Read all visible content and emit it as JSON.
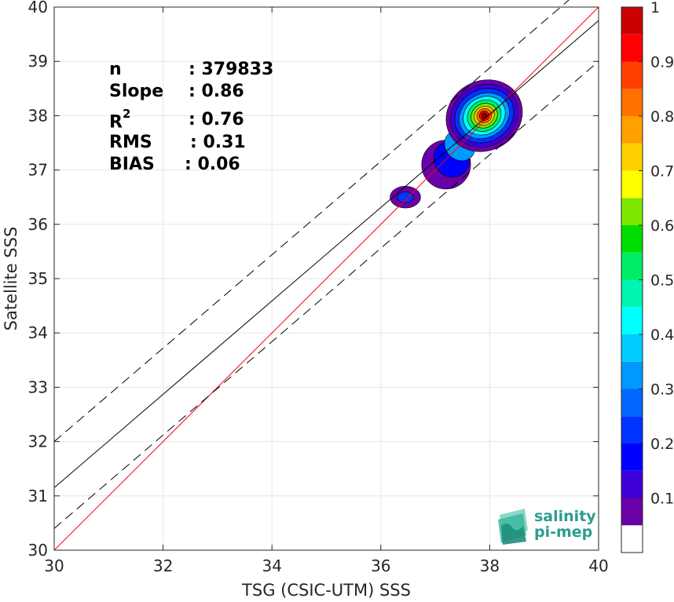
{
  "chart_data": {
    "type": "heatmap",
    "subtype": "density-contour scatter comparison",
    "xlabel": "TSG (CSIC-UTM) SSS",
    "ylabel": "Satellite SSS",
    "xlim": [
      30,
      40
    ],
    "ylim": [
      30,
      40
    ],
    "xticks": [
      30,
      32,
      34,
      36,
      38,
      40
    ],
    "yticks": [
      30,
      31,
      32,
      33,
      34,
      35,
      36,
      37,
      38,
      39,
      40
    ],
    "grid": true,
    "colorbar": {
      "min": 0,
      "max": 1,
      "ticks": [
        0.1,
        0.2,
        0.3,
        0.4,
        0.5,
        0.6,
        0.7,
        0.8,
        0.9,
        1
      ],
      "colors": [
        "#ffffff",
        "#6a00a8",
        "#3d00d6",
        "#0000ff",
        "#0033ff",
        "#0066ff",
        "#0099ff",
        "#00ccff",
        "#00ffff",
        "#00f5b0",
        "#00ee66",
        "#00dd00",
        "#7fe600",
        "#ffff00",
        "#ffd000",
        "#ffa000",
        "#ff7000",
        "#ff4000",
        "#ff0000",
        "#cc0000",
        "#8b0000"
      ]
    },
    "stats": {
      "n_label": "n",
      "n_value": ": 379833",
      "slope_label": "Slope",
      "slope_value": ": 0.86",
      "r2_label": "R",
      "r2_sup": "2",
      "r2_value": ": 0.76",
      "rms_label": "RMS",
      "rms_value": ": 0.31",
      "bias_label": "BIAS",
      "bias_value": ": 0.06"
    },
    "lines": [
      {
        "name": "identity",
        "style": "solid",
        "color": "#ff0000",
        "points": [
          [
            30,
            30
          ],
          [
            40,
            40
          ]
        ]
      },
      {
        "name": "regression",
        "style": "solid",
        "color": "#000000",
        "points": [
          [
            30,
            31.15
          ],
          [
            40,
            39.75
          ]
        ]
      },
      {
        "name": "upper-bound",
        "style": "dashed",
        "color": "#000000",
        "points": [
          [
            30,
            32.0
          ],
          [
            40,
            40.6
          ]
        ]
      },
      {
        "name": "lower-bound",
        "style": "dashed",
        "color": "#000000",
        "points": [
          [
            30,
            30.4
          ],
          [
            40,
            39.0
          ]
        ]
      }
    ],
    "density_peak": {
      "x": 37.9,
      "y": 38.0
    },
    "density_secondary": {
      "x": 36.45,
      "y": 36.5
    }
  },
  "logo": {
    "line1": "salinity",
    "line2": "pi-mep",
    "color": "#2a9d8f"
  }
}
